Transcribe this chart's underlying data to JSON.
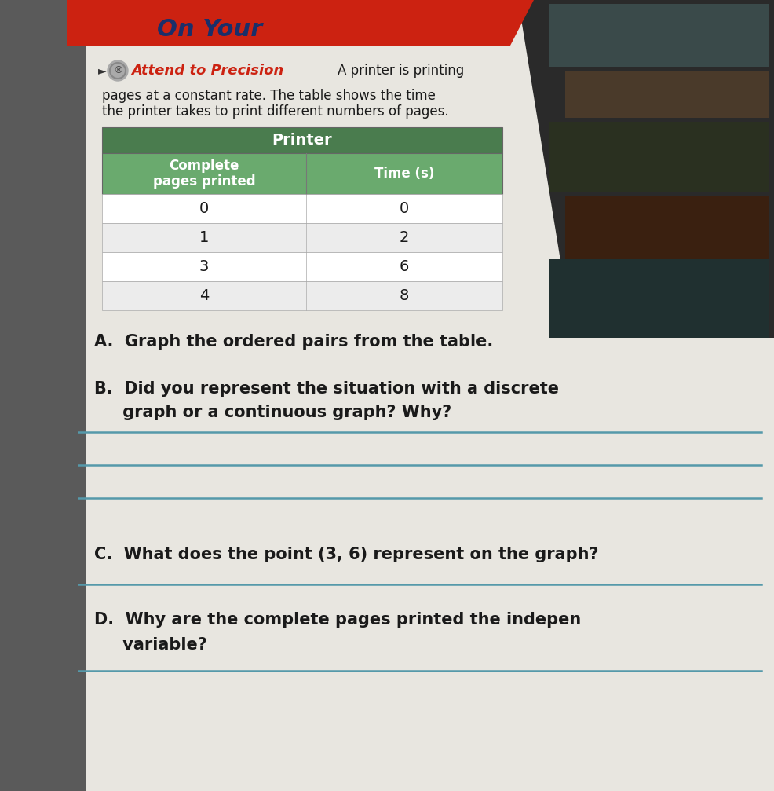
{
  "fig_width": 9.86,
  "fig_height": 10.07,
  "dpi": 100,
  "bg_color": "#7a7a7a",
  "page_bg": "#e8e6e0",
  "red_tab_color": "#cc2211",
  "green_dark": "#4a7c4e",
  "green_light": "#6aaa6e",
  "attend_color": "#cc2211",
  "attend_label": "Attend to Precision",
  "intro_text_line1": "A printer is printing",
  "intro_text_line2": "pages at a constant rate. The table shows the time",
  "intro_text_line3": "the printer takes to print different numbers of pages.",
  "table_title": "Printer",
  "col1_header": "Complete\npages printed",
  "col2_header": "Time (s)",
  "table_data": [
    [
      0,
      0
    ],
    [
      1,
      2
    ],
    [
      3,
      6
    ],
    [
      4,
      8
    ]
  ],
  "table_row_colors": [
    "#ffffff",
    "#ececec"
  ],
  "question_A": "A.  Graph the ordered pairs from the table.",
  "question_B_1": "B.  Did you represent the situation with a discrete",
  "question_B_2": "     graph or a continuous graph? Why?",
  "question_C": "C.  What does the point (3, 6) represent on the graph?",
  "question_D_1": "D.  Why are the complete pages printed the indepen",
  "question_D_2": "     variable?",
  "line_color": "#5599aa",
  "on_your_color": "#1a2f6a",
  "text_dark": "#1a1a1a"
}
